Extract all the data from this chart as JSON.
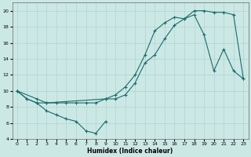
{
  "xlabel": "Humidex (Indice chaleur)",
  "bg_color": "#cce8e5",
  "grid_color": "#aed4d0",
  "line_color": "#1a6b6b",
  "xlim": [
    -0.5,
    23.5
  ],
  "ylim": [
    4,
    21
  ],
  "xticks": [
    0,
    1,
    2,
    3,
    4,
    5,
    6,
    7,
    8,
    9,
    10,
    11,
    12,
    13,
    14,
    15,
    16,
    17,
    18,
    19,
    20,
    21,
    22,
    23
  ],
  "yticks": [
    4,
    6,
    8,
    10,
    12,
    14,
    16,
    18,
    20
  ],
  "line_upper_x": [
    0,
    1,
    2,
    3,
    4,
    5,
    6,
    7,
    8,
    9,
    10,
    11,
    12,
    13,
    14,
    15,
    16,
    17,
    18,
    19,
    20,
    21,
    22,
    23
  ],
  "line_upper_y": [
    10,
    9,
    8.5,
    8.5,
    8.5,
    8.5,
    8.5,
    8.5,
    8.5,
    9,
    9.5,
    10.5,
    12,
    14.5,
    17.5,
    18.5,
    19.2,
    19,
    20,
    20,
    19.8,
    19.8,
    19.5,
    11.5
  ],
  "line_mid_x": [
    0,
    2,
    3,
    9,
    10,
    11,
    12,
    13,
    14,
    15,
    16,
    17,
    18,
    19,
    20,
    21,
    22,
    23
  ],
  "line_mid_y": [
    10,
    9,
    8.5,
    9,
    9,
    9.5,
    11,
    13.5,
    14.5,
    16.5,
    18.2,
    19,
    19.5,
    17,
    12.5,
    15.2,
    12.5,
    11.5
  ],
  "line_lower_x": [
    0,
    1,
    2,
    3,
    4,
    5,
    6,
    7,
    8,
    9
  ],
  "line_lower_y": [
    10,
    9,
    8.5,
    7.5,
    7,
    6.5,
    6.2,
    5,
    4.7,
    6.2
  ]
}
